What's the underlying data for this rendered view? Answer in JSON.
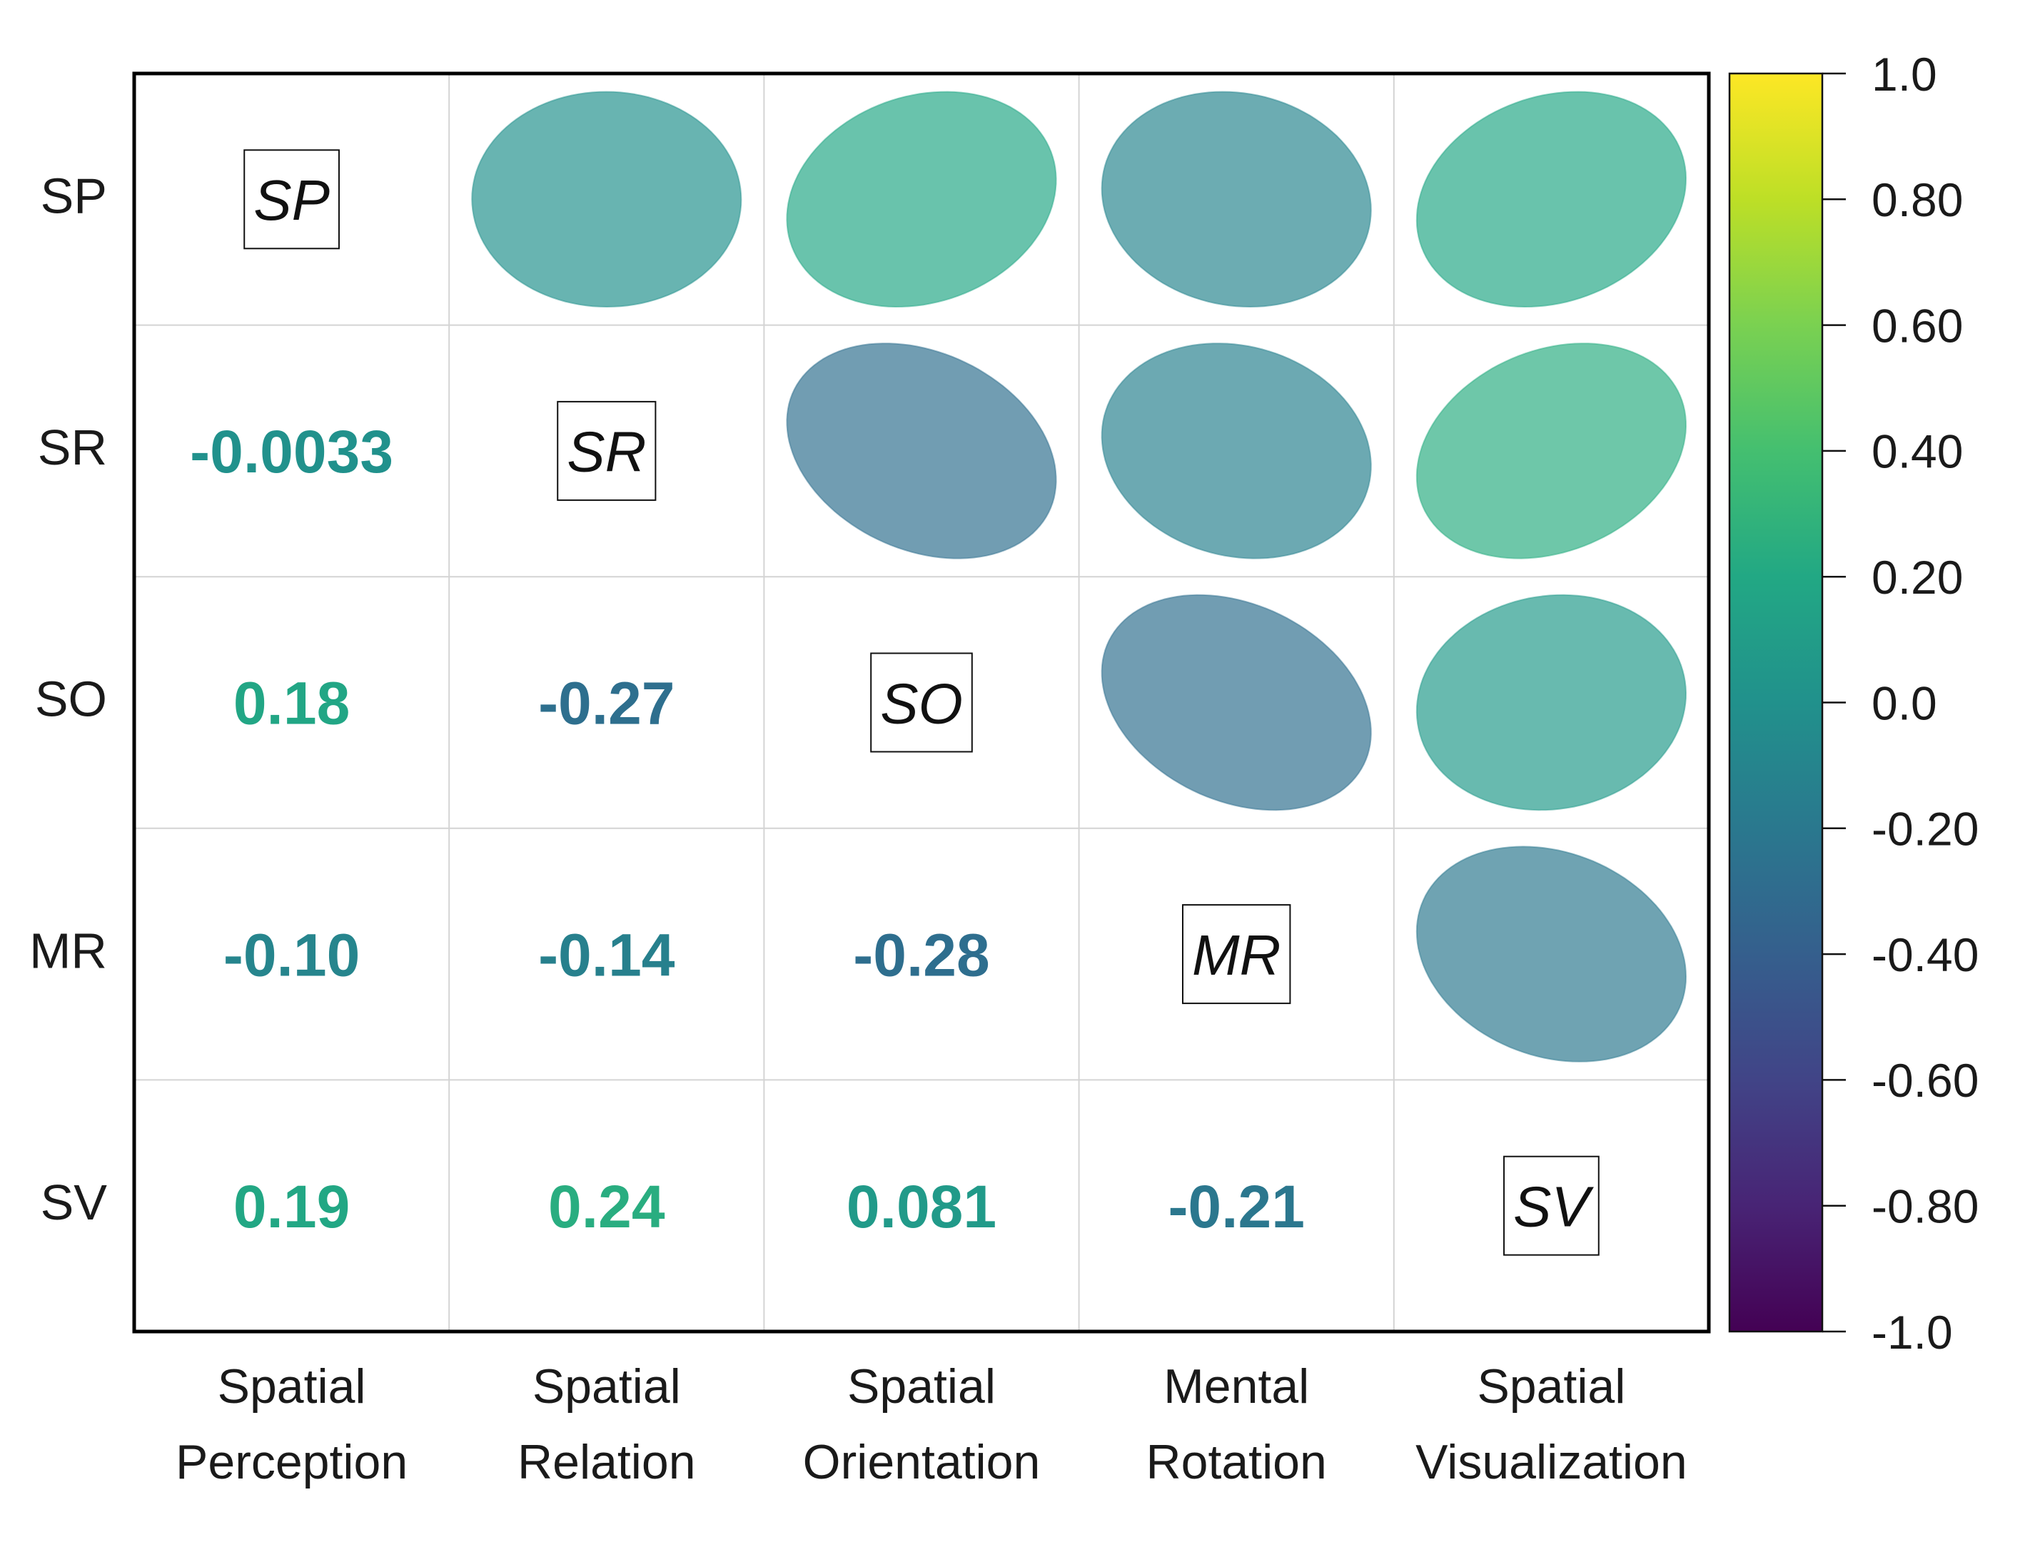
{
  "chart_data": {
    "type": "heatmap",
    "y_tick_labels": [
      "SP",
      "SR",
      "SO",
      "MR",
      "SV"
    ],
    "x_tick_labels": [
      [
        "Spatial",
        "Perception"
      ],
      [
        "Spatial",
        "Relation"
      ],
      [
        "Spatial",
        "Orientation"
      ],
      [
        "Mental",
        "Rotation"
      ],
      [
        "Spatial",
        "Visualization"
      ]
    ],
    "diagonal_labels": [
      "SP",
      "SR",
      "SO",
      "MR",
      "SV"
    ],
    "values": [
      [
        1,
        -0.0033,
        0.18,
        -0.1,
        0.19
      ],
      [
        -0.0033,
        1,
        -0.27,
        -0.14,
        0.24
      ],
      [
        0.18,
        -0.27,
        1,
        -0.28,
        0.081
      ],
      [
        -0.1,
        -0.14,
        -0.28,
        1,
        -0.21
      ],
      [
        0.19,
        0.24,
        0.081,
        -0.21,
        1
      ]
    ],
    "value_labels": [
      [
        "",
        "",
        "",
        "",
        ""
      ],
      [
        "-0.0033",
        "",
        "",
        "",
        ""
      ],
      [
        "0.18",
        "-0.27",
        "",
        "",
        ""
      ],
      [
        "-0.10",
        "-0.14",
        "-0.28",
        "",
        ""
      ],
      [
        "0.19",
        "0.24",
        "0.081",
        "-0.21",
        ""
      ]
    ],
    "lower_triangle": "numbers",
    "upper_triangle": "ellipses",
    "colormap": "viridis",
    "colorbar": {
      "range": [
        -1,
        1
      ],
      "ticks": [
        "1.0",
        "0.80",
        "0.60",
        "0.40",
        "0.20",
        "0.0",
        "-0.20",
        "-0.40",
        "-0.60",
        "-0.80",
        "-1.0"
      ]
    },
    "grid": true,
    "legend": "right"
  }
}
